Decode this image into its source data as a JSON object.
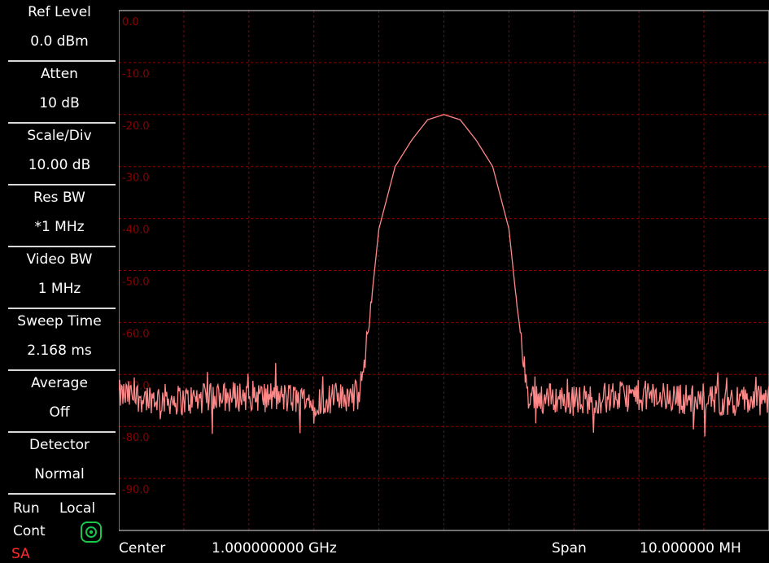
{
  "sidebar": {
    "params": [
      {
        "label": "Ref Level",
        "value": "0.0 dBm"
      },
      {
        "label": "Atten",
        "value": "10 dB"
      },
      {
        "label": "Scale/Div",
        "value": "10.00 dB"
      },
      {
        "label": "Res BW",
        "value": "*1 MHz"
      },
      {
        "label": "Video BW",
        "value": "1 MHz"
      },
      {
        "label": "Sweep Time",
        "value": "2.168 ms"
      },
      {
        "label": "Average",
        "value": "Off"
      },
      {
        "label": "Detector",
        "value": "Normal"
      }
    ],
    "run": "Run",
    "cont": "Cont",
    "local": "Local",
    "mode": "SA",
    "local_icon": "target-icon"
  },
  "footer": {
    "center_label": "Center",
    "center_value": "1.000000000 GHz",
    "span_label": "Span",
    "span_value": "10.000000 MH"
  },
  "chart_data": {
    "type": "line",
    "title": "",
    "xlabel": "",
    "ylabel": "",
    "y_tick_labels": [
      "0.0",
      "-10.0",
      "-20.0",
      "-30.0",
      "-40.0",
      "-50.0",
      "-60.0",
      "-70.0",
      "-80.0",
      "-90.0"
    ],
    "ylim": [
      -100,
      0
    ],
    "xlim_mhz_offset": [
      -5,
      5
    ],
    "grid": true,
    "colors": {
      "trace": "#ff8888",
      "grid": "#8b0000",
      "axis_label": "#8b0000",
      "border": "#e0e0e0"
    },
    "series": [
      {
        "x": [
          -5,
          -4,
          -3,
          -2,
          -1.3,
          -1.2,
          -1.0,
          -0.75,
          -0.5,
          -0.25,
          0,
          0.25,
          0.5,
          0.75,
          1.0,
          1.2,
          1.3,
          2,
          3,
          4,
          5
        ],
        "values": [
          -74,
          -75,
          -74,
          -75,
          -74,
          -66,
          -42,
          -30,
          -25,
          -21,
          -20,
          -21,
          -25,
          -30,
          -42,
          -66,
          -74,
          -75,
          -74,
          -75,
          -75
        ]
      }
    ]
  }
}
